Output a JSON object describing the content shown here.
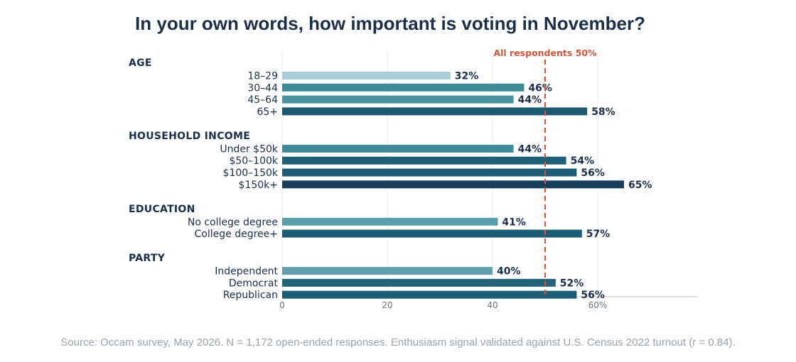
{
  "title": "In your own words, how important is voting in November?",
  "source": "Source: Occam survey, May 2026. N = 1,172 open-ended responses. Enthusiasm signal validated against U.S. Census 2022 turnout (r = 0.84).",
  "chart_data": {
    "type": "bar",
    "orientation": "horizontal",
    "title": "In your own words, how important is voting in November?",
    "xlim": [
      0,
      79
    ],
    "xticks": [
      {
        "value": 0,
        "label": "0"
      },
      {
        "value": 20,
        "label": "20"
      },
      {
        "value": 40,
        "label": "40"
      },
      {
        "value": 60,
        "label": "60%"
      }
    ],
    "grid": true,
    "reference_line": {
      "value": 50,
      "label": "All respondents  50%",
      "color": "#d0563c"
    },
    "groups": [
      {
        "name": "AGE",
        "bars": [
          {
            "label": "18–29",
            "value": 32,
            "text": "32%",
            "color": "#a9cdd6"
          },
          {
            "label": "30–44",
            "value": 46,
            "text": "46%",
            "color": "#3d8a98"
          },
          {
            "label": "45–64",
            "value": 44,
            "text": "44%",
            "color": "#4a94a2"
          },
          {
            "label": "65+",
            "value": 58,
            "text": "58%",
            "color": "#1c5a72"
          }
        ]
      },
      {
        "name": "HOUSEHOLD INCOME",
        "bars": [
          {
            "label": "Under $50k",
            "value": 44,
            "text": "44%",
            "color": "#3f8b99"
          },
          {
            "label": "$50–100k",
            "value": 54,
            "text": "54%",
            "color": "#1f6079"
          },
          {
            "label": "$100–150k",
            "value": 56,
            "text": "56%",
            "color": "#1d5c75"
          },
          {
            "label": "$150k+",
            "value": 65,
            "text": "65%",
            "color": "#173f5c"
          }
        ]
      },
      {
        "name": "EDUCATION",
        "bars": [
          {
            "label": "No college degree",
            "value": 41,
            "text": "41%",
            "color": "#5a9dab"
          },
          {
            "label": "College degree+",
            "value": 57,
            "text": "57%",
            "color": "#1e5b74"
          }
        ]
      },
      {
        "name": "PARTY",
        "bars": [
          {
            "label": "Independent",
            "value": 40,
            "text": "40%",
            "color": "#61a1ae"
          },
          {
            "label": "Democrat",
            "value": 52,
            "text": "52%",
            "color": "#22627a"
          },
          {
            "label": "Republican",
            "value": 56,
            "text": "56%",
            "color": "#1d5c75"
          }
        ]
      }
    ]
  }
}
